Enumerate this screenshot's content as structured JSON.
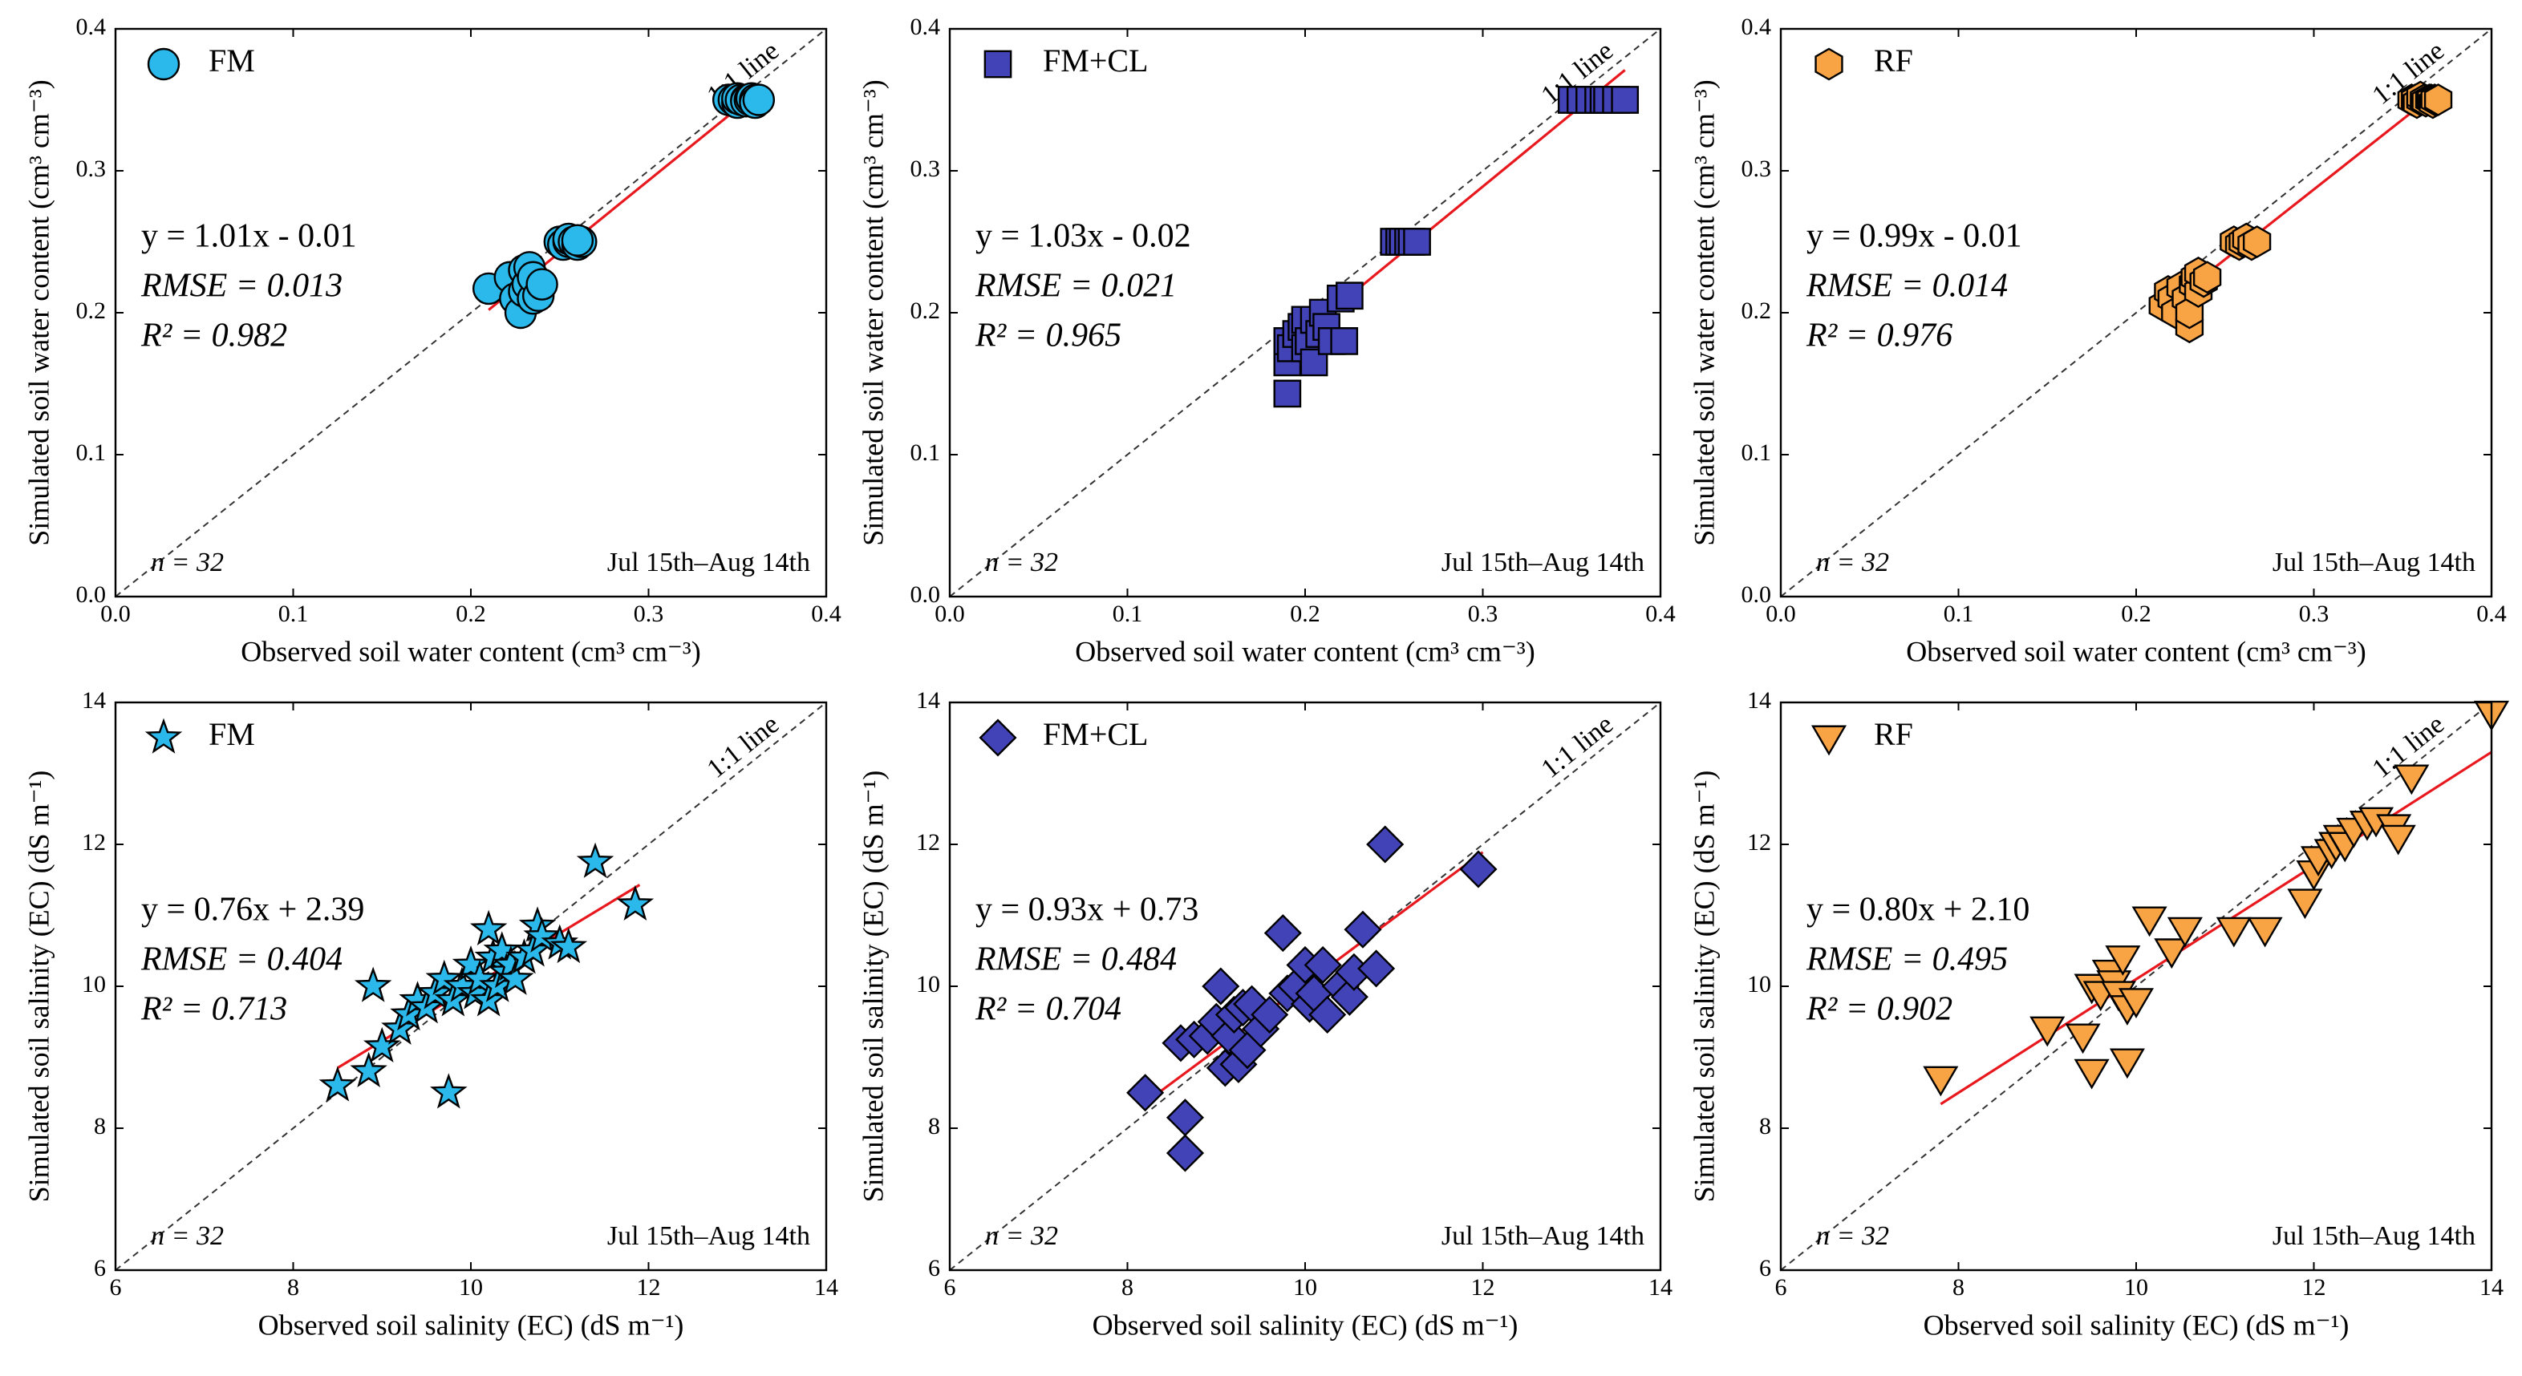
{
  "chart_data": [
    {
      "type": "scatter",
      "x_label": "Observed soil water content (cm³ cm⁻³)",
      "y_label": "Simulated soil water content (cm³ cm⁻³)",
      "xlim": [
        0,
        0.4
      ],
      "ylim": [
        0,
        0.4
      ],
      "xticks": [
        {
          "value": 0,
          "label": "0.0"
        },
        0.1,
        0.2,
        0.3,
        0.4
      ],
      "yticks": [
        {
          "value": 0,
          "label": "0.0"
        },
        0.1,
        0.2,
        0.3,
        0.4
      ],
      "legend": "upper left",
      "reference_label": "1:1 line",
      "annotations": [
        "y = 1.01x - 0.01",
        "RMSE = 0.013",
        "R² = 0.982"
      ],
      "annotation_color": "#1ea8e0",
      "n_label": "n = 32",
      "period": "Jul 15th–Aug 14th",
      "fit_line": {
        "color": "#e8191e",
        "x": [
          0.21,
          0.36
        ],
        "y": [
          0.202,
          0.354
        ]
      },
      "series": [
        {
          "name": "FM",
          "color": "#2bb8ea",
          "marker": "circle",
          "x": [
            0.21,
            0.222,
            0.225,
            0.228,
            0.23,
            0.23,
            0.232,
            0.233,
            0.235,
            0.235,
            0.238,
            0.24,
            0.25,
            0.252,
            0.255,
            0.255,
            0.258,
            0.26,
            0.262,
            0.26,
            0.345,
            0.348,
            0.35,
            0.35,
            0.352,
            0.355,
            0.355,
            0.357,
            0.358,
            0.36,
            0.36,
            0.362
          ],
          "y": [
            0.217,
            0.225,
            0.21,
            0.2,
            0.23,
            0.215,
            0.22,
            0.232,
            0.21,
            0.225,
            0.212,
            0.22,
            0.25,
            0.248,
            0.25,
            0.252,
            0.25,
            0.248,
            0.25,
            0.251,
            0.35,
            0.35,
            0.348,
            0.351,
            0.35,
            0.35,
            0.349,
            0.35,
            0.351,
            0.35,
            0.348,
            0.35
          ]
        }
      ]
    },
    {
      "type": "scatter",
      "x_label": "Observed soil water content (cm³ cm⁻³)",
      "y_label": "Simulated soil water content (cm³ cm⁻³)",
      "xlim": [
        0,
        0.4
      ],
      "ylim": [
        0,
        0.4
      ],
      "xticks": [
        {
          "value": 0,
          "label": "0.0"
        },
        0.1,
        0.2,
        0.3,
        0.4
      ],
      "yticks": [
        {
          "value": 0,
          "label": "0.0"
        },
        0.1,
        0.2,
        0.3,
        0.4
      ],
      "legend": "upper left",
      "reference_label": "1:1 line",
      "annotations": [
        "y = 1.03x - 0.02",
        "RMSE = 0.021",
        "R² = 0.965"
      ],
      "annotation_color": "#20209a",
      "n_label": "n = 32",
      "period": "Jul 15th–Aug 14th",
      "fit_line": {
        "color": "#e8191e",
        "x": [
          0.19,
          0.38
        ],
        "y": [
          0.176,
          0.371
        ]
      },
      "series": [
        {
          "name": "FM+CL",
          "color": "#4343b8",
          "marker": "square",
          "x": [
            0.19,
            0.19,
            0.19,
            0.192,
            0.195,
            0.198,
            0.2,
            0.2,
            0.202,
            0.205,
            0.205,
            0.208,
            0.21,
            0.212,
            0.215,
            0.22,
            0.222,
            0.225,
            0.25,
            0.253,
            0.255,
            0.258,
            0.26,
            0.263,
            0.35,
            0.355,
            0.36,
            0.365,
            0.368,
            0.37,
            0.375,
            0.38
          ],
          "y": [
            0.143,
            0.165,
            0.18,
            0.175,
            0.185,
            0.19,
            0.195,
            0.175,
            0.18,
            0.165,
            0.195,
            0.185,
            0.2,
            0.19,
            0.18,
            0.21,
            0.18,
            0.212,
            0.25,
            0.25,
            0.25,
            0.25,
            0.25,
            0.25,
            0.35,
            0.35,
            0.35,
            0.35,
            0.35,
            0.35,
            0.35,
            0.35
          ]
        }
      ]
    },
    {
      "type": "scatter",
      "x_label": "Observed soil water content (cm³ cm⁻³)",
      "y_label": "Simulated soil water content (cm³ cm⁻³)",
      "xlim": [
        0,
        0.4
      ],
      "ylim": [
        0,
        0.4
      ],
      "xticks": [
        {
          "value": 0,
          "label": "0.0"
        },
        0.1,
        0.2,
        0.3,
        0.4
      ],
      "yticks": [
        {
          "value": 0,
          "label": "0.0"
        },
        0.1,
        0.2,
        0.3,
        0.4
      ],
      "legend": "upper left",
      "reference_label": "1:1 line",
      "annotations": [
        "y = 0.99x - 0.01",
        "RMSE = 0.014",
        "R² = 0.976"
      ],
      "annotation_color": "#f39a2a",
      "n_label": "n = 32",
      "period": "Jul 15th–Aug 14th",
      "fit_line": {
        "color": "#e8191e",
        "x": [
          0.215,
          0.365
        ],
        "y": [
          0.203,
          0.351
        ]
      },
      "series": [
        {
          "name": "RF",
          "color": "#f8a445",
          "marker": "hexagon",
          "x": [
            0.215,
            0.218,
            0.22,
            0.222,
            0.225,
            0.228,
            0.23,
            0.23,
            0.232,
            0.233,
            0.235,
            0.235,
            0.238,
            0.24,
            0.255,
            0.258,
            0.26,
            0.262,
            0.265,
            0.268,
            0.355,
            0.357,
            0.358,
            0.36,
            0.36,
            0.362,
            0.363,
            0.365,
            0.366,
            0.367,
            0.368,
            0.37
          ],
          "y": [
            0.205,
            0.215,
            0.21,
            0.2,
            0.218,
            0.21,
            0.19,
            0.2,
            0.22,
            0.225,
            0.215,
            0.228,
            0.222,
            0.225,
            0.25,
            0.248,
            0.25,
            0.252,
            0.248,
            0.25,
            0.35,
            0.35,
            0.348,
            0.35,
            0.352,
            0.35,
            0.349,
            0.35,
            0.35,
            0.348,
            0.35,
            0.35
          ]
        }
      ]
    },
    {
      "type": "scatter",
      "x_label": "Observed soil salinity (EC) (dS m⁻¹)",
      "y_label": "Simulated soil salinity (EC) (dS m⁻¹)",
      "xlim": [
        6,
        14
      ],
      "ylim": [
        6,
        14
      ],
      "xticks": [
        6,
        8,
        10,
        12,
        14
      ],
      "yticks": [
        6,
        8,
        10,
        12,
        14
      ],
      "legend": "upper left",
      "reference_label": "1:1 line",
      "annotations": [
        "y = 0.76x + 2.39",
        "RMSE = 0.404",
        "R² = 0.713"
      ],
      "annotation_color": "#1ea8e0",
      "n_label": "n = 32",
      "period": "Jul 15th–Aug 14th",
      "fit_line": {
        "color": "#e8191e",
        "x": [
          8.5,
          11.9
        ],
        "y": [
          8.85,
          11.43
        ]
      },
      "series": [
        {
          "name": "FM",
          "color": "#2bb8ea",
          "marker": "star",
          "x": [
            8.5,
            8.85,
            8.9,
            9.0,
            9.2,
            9.3,
            9.4,
            9.5,
            9.6,
            9.7,
            9.75,
            9.8,
            9.9,
            10.0,
            10.05,
            10.1,
            10.2,
            10.2,
            10.25,
            10.3,
            10.35,
            10.4,
            10.45,
            10.5,
            10.6,
            10.7,
            10.75,
            10.8,
            11.0,
            11.1,
            11.4,
            11.85
          ],
          "y": [
            8.6,
            8.8,
            10.0,
            9.15,
            9.4,
            9.6,
            9.8,
            9.7,
            9.9,
            10.1,
            8.5,
            9.8,
            10.0,
            10.3,
            9.9,
            10.1,
            10.8,
            9.8,
            10.4,
            10.0,
            10.5,
            10.2,
            10.3,
            10.1,
            10.4,
            10.5,
            10.85,
            10.7,
            10.6,
            10.55,
            11.75,
            11.15
          ]
        }
      ]
    },
    {
      "type": "scatter",
      "x_label": "Observed soil salinity (EC) (dS m⁻¹)",
      "y_label": "Simulated soil salinity (EC) (dS m⁻¹)",
      "xlim": [
        6,
        14
      ],
      "ylim": [
        6,
        14
      ],
      "xticks": [
        6,
        8,
        10,
        12,
        14
      ],
      "yticks": [
        6,
        8,
        10,
        12,
        14
      ],
      "legend": "upper left",
      "reference_label": "1:1 line",
      "annotations": [
        "y = 0.93x + 0.73",
        "RMSE = 0.484",
        "R² = 0.704"
      ],
      "annotation_color": "#20209a",
      "n_label": "n = 32",
      "period": "Jul 15th–Aug 14th",
      "fit_line": {
        "color": "#e8191e",
        "x": [
          8.2,
          12.0
        ],
        "y": [
          8.36,
          11.89
        ]
      },
      "series": [
        {
          "name": "FM+CL",
          "color": "#4343b8",
          "marker": "diamond",
          "x": [
            8.2,
            8.6,
            8.65,
            8.65,
            8.75,
            8.9,
            9.0,
            9.05,
            9.1,
            9.15,
            9.2,
            9.25,
            9.3,
            9.35,
            9.4,
            9.5,
            9.6,
            9.75,
            9.8,
            9.9,
            10.0,
            10.05,
            10.1,
            10.2,
            10.25,
            10.4,
            10.5,
            10.55,
            10.65,
            10.8,
            10.9,
            11.95
          ],
          "y": [
            8.5,
            9.2,
            7.65,
            8.15,
            9.25,
            9.3,
            9.5,
            10.0,
            8.85,
            9.3,
            9.6,
            8.9,
            9.7,
            9.1,
            9.75,
            9.4,
            9.6,
            10.75,
            9.9,
            10.0,
            10.3,
            9.75,
            9.9,
            10.3,
            9.6,
            10.0,
            9.85,
            10.2,
            10.8,
            10.25,
            12.0,
            11.65
          ]
        }
      ]
    },
    {
      "type": "scatter",
      "x_label": "Observed soil salinity (EC) (dS m⁻¹)",
      "y_label": "Simulated soil salinity (EC) (dS m⁻¹)",
      "xlim": [
        6,
        14
      ],
      "ylim": [
        6,
        14
      ],
      "xticks": [
        6,
        8,
        10,
        12,
        14
      ],
      "yticks": [
        6,
        8,
        10,
        12,
        14
      ],
      "legend": "upper left",
      "reference_label": "1:1 line",
      "annotations": [
        "y = 0.80x + 2.10",
        "RMSE = 0.495",
        "R² = 0.902"
      ],
      "annotation_color": "#f39a2a",
      "n_label": "n = 32",
      "period": "Jul 15th–Aug 14th",
      "fit_line": {
        "color": "#e8191e",
        "x": [
          7.8,
          14.0
        ],
        "y": [
          8.34,
          13.3
        ]
      },
      "series": [
        {
          "name": "RF",
          "color": "#f8a445",
          "marker": "triangle-down",
          "x": [
            7.8,
            9.0,
            9.4,
            9.5,
            9.5,
            9.6,
            9.7,
            9.75,
            9.8,
            9.85,
            9.9,
            9.9,
            10.0,
            10.15,
            10.4,
            10.55,
            11.1,
            11.45,
            11.9,
            12.0,
            12.05,
            12.2,
            12.25,
            12.3,
            12.35,
            12.45,
            12.6,
            12.7,
            12.9,
            12.95,
            13.1,
            14.0
          ],
          "y": [
            8.7,
            9.4,
            9.3,
            8.8,
            10.0,
            9.9,
            10.2,
            10.05,
            9.9,
            10.4,
            9.7,
            8.95,
            9.8,
            10.95,
            10.5,
            10.8,
            10.8,
            10.8,
            11.2,
            11.6,
            11.8,
            11.9,
            12.0,
            12.1,
            12.0,
            12.2,
            12.3,
            12.35,
            12.25,
            12.1,
            12.95,
            13.85
          ]
        }
      ]
    }
  ]
}
